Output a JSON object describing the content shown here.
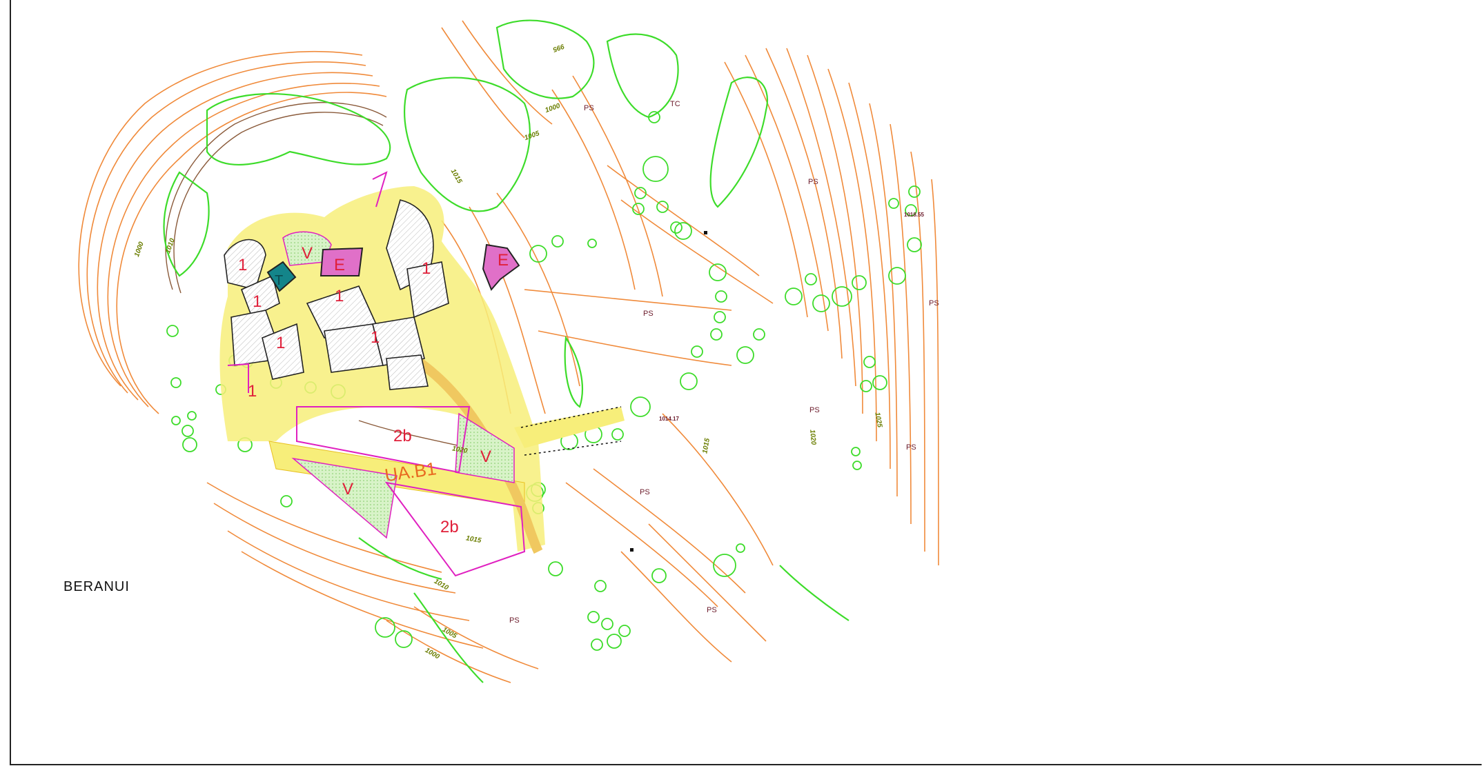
{
  "map": {
    "place_name": "BERANUI",
    "zones": {
      "one": "1",
      "two_b": "2b",
      "green": "V",
      "equipment": "E",
      "technical": "T",
      "unit": "UA.B1"
    },
    "land_class": {
      "ps": "PS",
      "tc": "TC"
    },
    "contours": [
      "995",
      "1000",
      "1005",
      "1010",
      "1015",
      "1020",
      "1025"
    ],
    "spot_heights": [
      "1018.55",
      "1014.17"
    ],
    "colors": {
      "contour": "#f08a3a",
      "contour_dark": "#8a5a3a",
      "vegetation": "#3ddc2a",
      "urban_road": "#f7ee7a",
      "boundary": "#e020c0",
      "equipment_fill": "#e070c8",
      "technical_fill": "#14858a",
      "zone_label": "#e0203a"
    }
  }
}
